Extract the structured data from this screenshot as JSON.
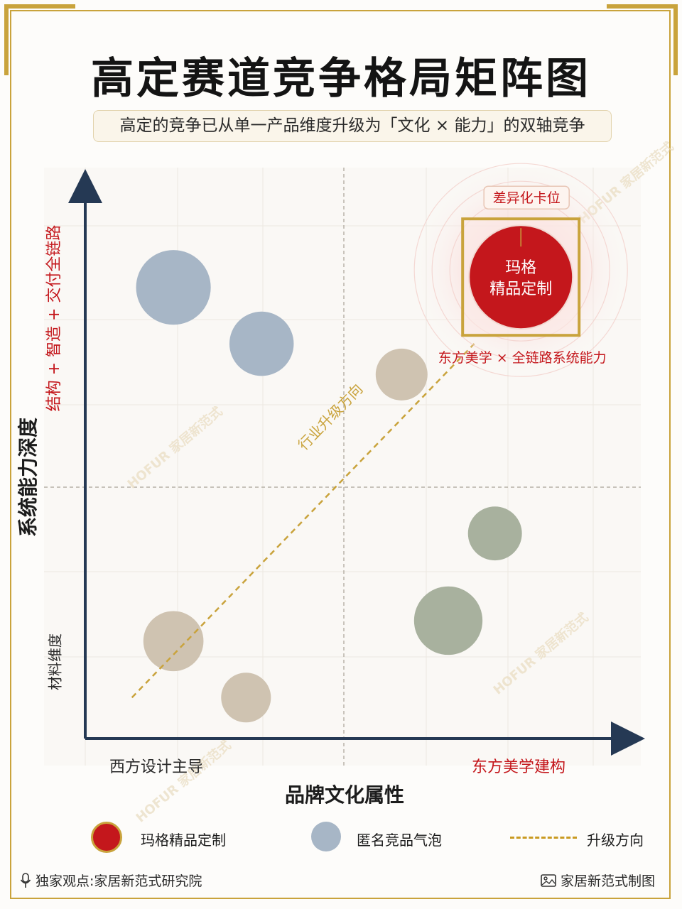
{
  "title": "高定赛道竞争格局矩阵图",
  "subtitle": "高定的竞争已从单一产品维度升级为「文化 × 能力」的双轴竞争",
  "colors": {
    "gold": "#c9a33c",
    "red": "#c4171c",
    "axis": "#253954",
    "blue_bubble": "#a7b6c6",
    "beige_bubble": "#cfc3b1",
    "green_bubble": "#a8b19e"
  },
  "watermark": "HOFUR 家居新范式",
  "chart_data": {
    "type": "scatter",
    "title": "高定赛道竞争格局矩阵图",
    "xlabel": "品牌文化属性",
    "ylabel": "系统能力深度",
    "x_axis_ends": {
      "left": "西方设计主导",
      "right": "东方美学建构"
    },
    "y_axis_ends": {
      "top": "结构 + 智造 + 交付全链路",
      "bottom": "材料维度"
    },
    "xlim": [
      0,
      100
    ],
    "ylim": [
      0,
      100
    ],
    "grid": true,
    "quadrant_dividers": {
      "x": 50,
      "y": 50
    },
    "trend_line": {
      "label": "行业升级方向",
      "from": [
        9,
        8
      ],
      "to": [
        75,
        77
      ]
    },
    "series": [
      {
        "name": "玛格精品定制",
        "color": "#c4171c",
        "points": [
          {
            "x": 84,
            "y": 90,
            "r": 10,
            "label": "玛格\n精品定制",
            "tag": "差异化卡位",
            "note": "东方美学 × 全链路系统能力"
          }
        ]
      },
      {
        "name": "匿名竞品气泡",
        "points": [
          {
            "x": 17,
            "y": 88,
            "r": 7.2,
            "color": "#a7b6c6"
          },
          {
            "x": 34,
            "y": 77,
            "r": 6.2,
            "color": "#a7b6c6"
          },
          {
            "x": 61,
            "y": 71,
            "r": 5.0,
            "color": "#cfc3b1"
          },
          {
            "x": 79,
            "y": 40,
            "r": 5.2,
            "color": "#a8b19e"
          },
          {
            "x": 70,
            "y": 23,
            "r": 6.6,
            "color": "#a8b19e"
          },
          {
            "x": 17,
            "y": 19,
            "r": 5.8,
            "color": "#cfc3b1"
          },
          {
            "x": 31,
            "y": 8,
            "r": 4.8,
            "color": "#cfc3b1"
          }
        ]
      }
    ]
  },
  "legend": [
    {
      "label": "玛格精品定制",
      "icon": "red-circle"
    },
    {
      "label": "匿名竞品气泡",
      "icon": "blue-circle"
    },
    {
      "label": "升级方向",
      "icon": "dashed-line"
    }
  ],
  "footer": {
    "left": "独家观点:家居新范式研究院",
    "left_icon": "microphone-icon",
    "right": "家居新范式制图",
    "right_icon": "image-icon"
  }
}
